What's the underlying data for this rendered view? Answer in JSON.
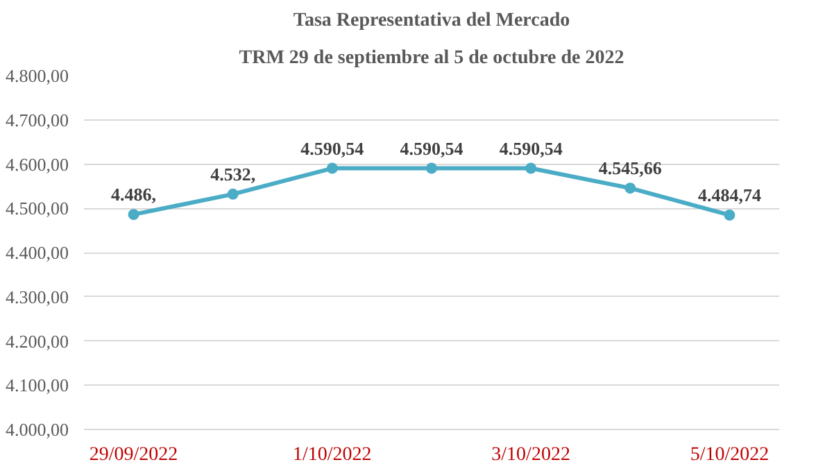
{
  "chart_data": {
    "type": "line",
    "title": "Tasa Representativa del Mercado",
    "subtitle": "TRM 29 de septiembre al 5 de octubre de 2022",
    "categories": [
      "29/09/2022",
      null,
      "1/10/2022",
      null,
      "3/10/2022",
      null,
      "5/10/2022"
    ],
    "series": [
      {
        "color": "#4bacc6",
        "values": [
          4486,
          4532,
          4590.54,
          4590.54,
          4590.54,
          4545.66,
          4484.74
        ],
        "value_labels": [
          "4.486,",
          "4.532,",
          "4.590,54",
          "4.590,54",
          "4.590,54",
          "4.545,66",
          "4.484,74"
        ]
      }
    ],
    "ylim": [
      4000,
      4800
    ],
    "yticks": [
      {
        "value": 4000,
        "label": "4.000,00"
      },
      {
        "value": 4100,
        "label": "4.100,00"
      },
      {
        "value": 4200,
        "label": "4.200,00"
      },
      {
        "value": 4300,
        "label": "4.300,00"
      },
      {
        "value": 4400,
        "label": "4.400,00"
      },
      {
        "value": 4500,
        "label": "4.500,00"
      },
      {
        "value": 4600,
        "label": "4.600,00"
      },
      {
        "value": 4700,
        "label": "4.700,00"
      },
      {
        "value": 4800,
        "label": "4.800,00"
      }
    ],
    "grid": "y",
    "marker": "circle",
    "line_style": "solid"
  }
}
